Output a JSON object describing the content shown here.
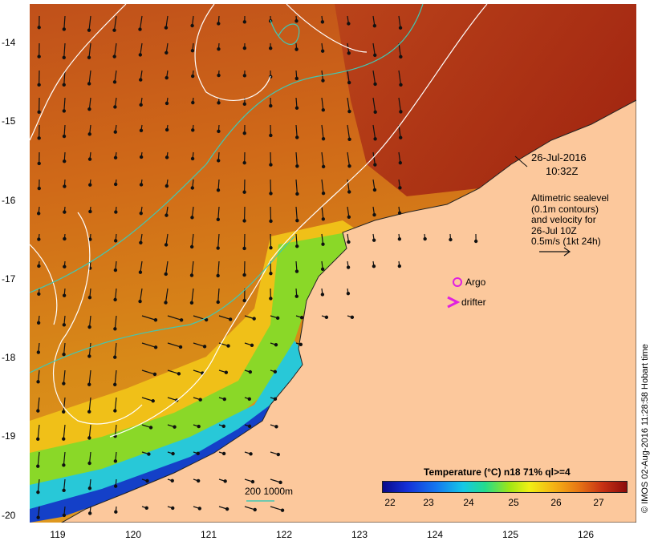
{
  "map": {
    "x_ticks": [
      "119",
      "120",
      "121",
      "122",
      "123",
      "124",
      "125",
      "126"
    ],
    "y_ticks": [
      "-14",
      "-15",
      "-16",
      "-17",
      "-18",
      "-19",
      "-20"
    ],
    "date_line1": "26-Jul-2016",
    "date_line2": "10:32Z",
    "legend_lines": [
      "Altimetric sealevel",
      "(0.1m contours)",
      "and velocity for",
      "26-Jul 10Z",
      "0.5m/s (1kt 24h)"
    ],
    "argo_label": "Argo",
    "drifter_label": "drifter",
    "depth_label": "200  1000m",
    "credit": "© IMOS 02-Aug-2016 11:28:58 Hobart time",
    "colorbar_title": "Temperature (°C) n18 71% ql>=4",
    "colorbar_ticks": [
      "22",
      "23",
      "24",
      "25",
      "26",
      "27"
    ],
    "colors": {
      "land": "#fcc89c",
      "argo": "#e020e0",
      "drifter": "#e020e0",
      "bathy": "#40c8b4",
      "contour": "#ffffff"
    }
  }
}
